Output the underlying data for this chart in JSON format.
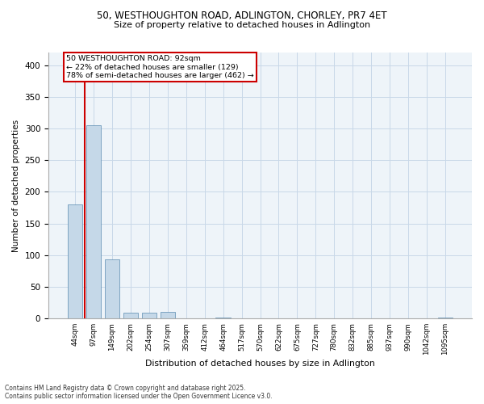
{
  "title_line1": "50, WESTHOUGHTON ROAD, ADLINGTON, CHORLEY, PR7 4ET",
  "title_line2": "Size of property relative to detached houses in Adlington",
  "xlabel": "Distribution of detached houses by size in Adlington",
  "ylabel": "Number of detached properties",
  "categories": [
    "44sqm",
    "97sqm",
    "149sqm",
    "202sqm",
    "254sqm",
    "307sqm",
    "359sqm",
    "412sqm",
    "464sqm",
    "517sqm",
    "570sqm",
    "622sqm",
    "675sqm",
    "727sqm",
    "780sqm",
    "832sqm",
    "885sqm",
    "937sqm",
    "990sqm",
    "1042sqm",
    "1095sqm"
  ],
  "values": [
    180,
    305,
    93,
    9,
    9,
    10,
    0,
    0,
    2,
    0,
    0,
    0,
    0,
    0,
    0,
    0,
    0,
    0,
    0,
    0,
    1
  ],
  "bar_color": "#c5d8e8",
  "bar_edge_color": "#5a8bb0",
  "vline_x": 0.5,
  "annotation_box": {
    "text_line1": "50 WESTHOUGHTON ROAD: 92sqm",
    "text_line2": "← 22% of detached houses are smaller (129)",
    "text_line3": "78% of semi-detached houses are larger (462) →"
  },
  "vline_color": "#cc0000",
  "box_edge_color": "#cc0000",
  "ylim": [
    0,
    420
  ],
  "yticks": [
    0,
    50,
    100,
    150,
    200,
    250,
    300,
    350,
    400
  ],
  "grid_color": "#c8d8e8",
  "background_color": "#eef4f9",
  "footer_line1": "Contains HM Land Registry data © Crown copyright and database right 2025.",
  "footer_line2": "Contains public sector information licensed under the Open Government Licence v3.0."
}
